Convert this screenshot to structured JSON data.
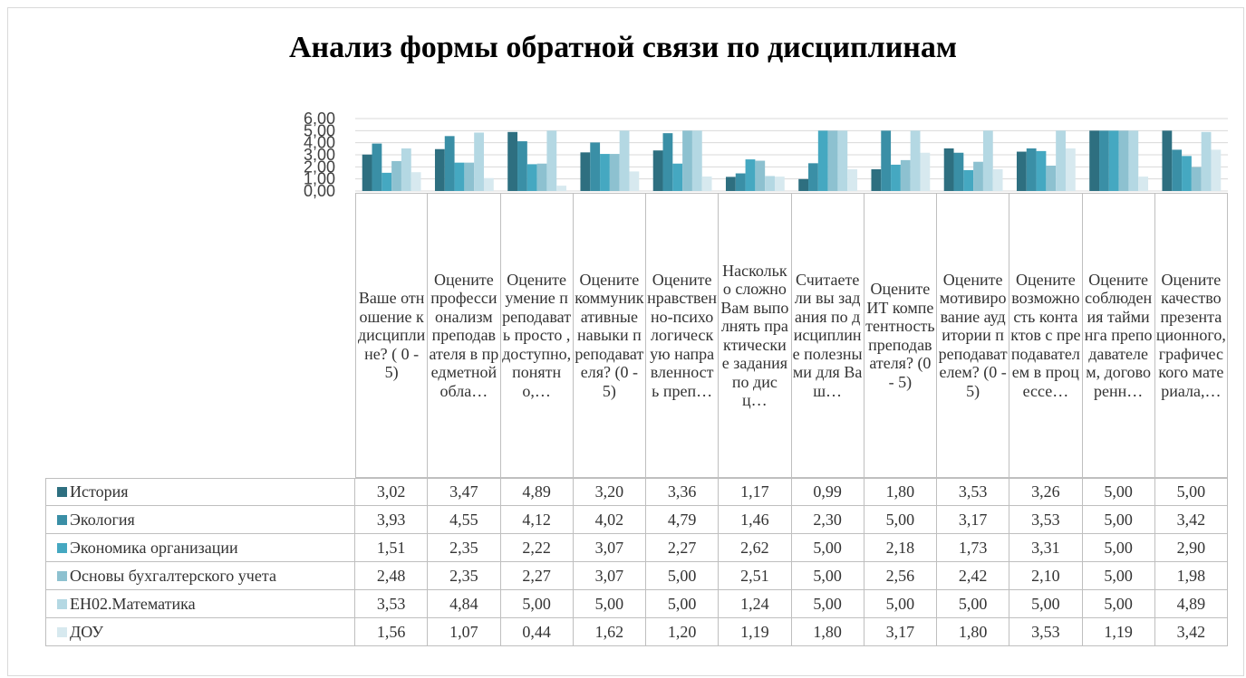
{
  "chart_data": {
    "type": "bar",
    "title": "Анализ формы  обратной связи по дисциплинам",
    "categories": [
      "Ваше отношение к дисциплине? ( 0 - 5)",
      "Оцените профессионализм преподавателя в предметной обла…",
      "Оцените умение преподавать просто , доступно, понятно,…",
      "Оцените коммуникативные навыки преподавателя? (0 - 5)",
      "Оцените нравственно-психологическую направленность преп…",
      "Насколько сложно Вам выполнять практические задания по дисц…",
      "Считаете ли вы задания по дисциплине полезными для Ваш…",
      "Оцените ИТ компетентность преподавателя? (0 - 5)",
      "Оцените мотивирование аудитории преподавателем? (0 - 5)",
      "Оцените возможность контактов с преподавателем в процессе…",
      "Оцените соблюдения тайминга преподавателем, договоренн…",
      "Оцените качество презентационного, графического материала,…"
    ],
    "series": [
      {
        "name": "История",
        "color": "#2e6f80",
        "values": [
          3.02,
          3.47,
          4.89,
          3.2,
          3.36,
          1.17,
          0.99,
          1.8,
          3.53,
          3.26,
          5.0,
          5.0
        ],
        "value_labels": [
          "3,02",
          "3,47",
          "4,89",
          "3,20",
          "3,36",
          "1,17",
          "0,99",
          "1,80",
          "3,53",
          "3,26",
          "5,00",
          "5,00"
        ]
      },
      {
        "name": "Экология",
        "color": "#3a8fa6",
        "values": [
          3.93,
          4.55,
          4.12,
          4.02,
          4.79,
          1.46,
          2.3,
          5.0,
          3.17,
          3.53,
          5.0,
          3.42
        ],
        "value_labels": [
          "3,93",
          "4,55",
          "4,12",
          "4,02",
          "4,79",
          "1,46",
          "2,30",
          "5,00",
          "3,17",
          "3,53",
          "5,00",
          "3,42"
        ]
      },
      {
        "name": "Экономика организации",
        "color": "#45a8c1",
        "values": [
          1.51,
          2.35,
          2.22,
          3.07,
          2.27,
          2.62,
          5.0,
          2.18,
          1.73,
          3.31,
          5.0,
          2.9
        ],
        "value_labels": [
          "1,51",
          "2,35",
          "2,22",
          "3,07",
          "2,27",
          "2,62",
          "5,00",
          "2,18",
          "1,73",
          "3,31",
          "5,00",
          "2,90"
        ]
      },
      {
        "name": "Основы бухгалтерского учета",
        "color": "#8dc1d0",
        "values": [
          2.48,
          2.35,
          2.27,
          3.07,
          5.0,
          2.51,
          5.0,
          2.56,
          2.42,
          2.1,
          5.0,
          1.98
        ],
        "value_labels": [
          "2,48",
          "2,35",
          "2,27",
          "3,07",
          "5,00",
          "2,51",
          "5,00",
          "2,56",
          "2,42",
          "2,10",
          "5,00",
          "1,98"
        ]
      },
      {
        "name": "ЕН02.Математика",
        "color": "#b4d8e3",
        "values": [
          3.53,
          4.84,
          5.0,
          5.0,
          5.0,
          1.24,
          5.0,
          5.0,
          5.0,
          5.0,
          5.0,
          4.89
        ],
        "value_labels": [
          "3,53",
          "4,84",
          "5,00",
          "5,00",
          "5,00",
          "1,24",
          "5,00",
          "5,00",
          "5,00",
          "5,00",
          "5,00",
          "4,89"
        ]
      },
      {
        "name": "ДОУ",
        "color": "#d7e9ef",
        "values": [
          1.56,
          1.07,
          0.44,
          1.62,
          1.2,
          1.19,
          1.8,
          3.17,
          1.8,
          3.53,
          1.19,
          3.42
        ],
        "value_labels": [
          "1,56",
          "1,07",
          "0,44",
          "1,62",
          "1,20",
          "1,19",
          "1,80",
          "3,17",
          "1,80",
          "3,53",
          "1,19",
          "3,42"
        ]
      }
    ],
    "ylim": [
      0,
      6
    ],
    "yticks": [
      {
        "value": 0,
        "label": "0,00"
      },
      {
        "value": 1,
        "label": "1,00"
      },
      {
        "value": 2,
        "label": "2,00"
      },
      {
        "value": 3,
        "label": "3,00"
      },
      {
        "value": 4,
        "label": "4,00"
      },
      {
        "value": 5,
        "label": "5,00"
      },
      {
        "value": 6,
        "label": "6,00"
      }
    ],
    "grid": true
  }
}
